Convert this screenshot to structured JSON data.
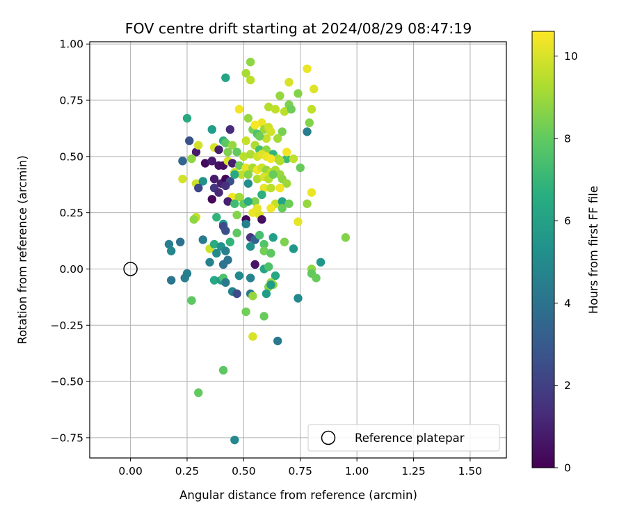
{
  "chart_data": {
    "type": "scatter",
    "title": "FOV centre drift starting at 2024/08/29 08:47:19",
    "xlabel": "Angular distance from reference (arcmin)",
    "ylabel": "Rotation from reference (arcmin)",
    "xlim": [
      -0.18,
      1.66
    ],
    "ylim": [
      -0.84,
      1.01
    ],
    "x_ticks": [
      "0.00",
      "0.25",
      "0.50",
      "0.75",
      "1.00",
      "1.25",
      "1.50"
    ],
    "y_ticks": [
      "1.00",
      "0.75",
      "0.50",
      "0.25",
      "0.00",
      "−0.25",
      "−0.50",
      "−0.75"
    ],
    "grid": true,
    "legend": {
      "placement": "lower-right",
      "entries": [
        "Reference platepar"
      ]
    },
    "colormap": "viridis",
    "colorbar": {
      "label": "Hours from first FF file",
      "range": [
        0,
        10.6
      ],
      "ticks": [
        "0",
        "2",
        "4",
        "6",
        "8",
        "10"
      ]
    },
    "reference": {
      "x": 0.0,
      "y": 0.0
    },
    "points": [
      [
        0.42,
        0.85,
        6.2
      ],
      [
        0.53,
        0.92,
        8.8
      ],
      [
        0.51,
        0.87,
        9.2
      ],
      [
        0.53,
        0.84,
        9.5
      ],
      [
        0.78,
        0.89,
        10.3
      ],
      [
        0.7,
        0.83,
        10.0
      ],
      [
        0.81,
        0.8,
        10.1
      ],
      [
        0.74,
        0.78,
        8.6
      ],
      [
        0.66,
        0.77,
        8.9
      ],
      [
        0.48,
        0.71,
        10.4
      ],
      [
        0.61,
        0.72,
        9.4
      ],
      [
        0.64,
        0.71,
        9.6
      ],
      [
        0.68,
        0.7,
        9.5
      ],
      [
        0.7,
        0.73,
        8.5
      ],
      [
        0.71,
        0.71,
        8.2
      ],
      [
        0.8,
        0.71,
        9.6
      ],
      [
        0.25,
        0.67,
        6.4
      ],
      [
        0.52,
        0.67,
        8.9
      ],
      [
        0.54,
        0.62,
        8.4
      ],
      [
        0.58,
        0.65,
        10.3
      ],
      [
        0.55,
        0.64,
        10.5
      ],
      [
        0.59,
        0.62,
        9.0
      ],
      [
        0.56,
        0.6,
        7.6
      ],
      [
        0.61,
        0.63,
        9.8
      ],
      [
        0.62,
        0.61,
        9.9
      ],
      [
        0.36,
        0.62,
        5.9
      ],
      [
        0.44,
        0.62,
        1.3
      ],
      [
        0.79,
        0.65,
        8.6
      ],
      [
        0.78,
        0.61,
        4.5
      ],
      [
        0.67,
        0.61,
        8.4
      ],
      [
        0.65,
        0.58,
        9.1
      ],
      [
        0.6,
        0.58,
        9.7
      ],
      [
        0.57,
        0.59,
        8.2
      ],
      [
        0.26,
        0.57,
        2.7
      ],
      [
        0.41,
        0.57,
        6.6
      ],
      [
        0.42,
        0.56,
        7.9
      ],
      [
        0.45,
        0.55,
        8.9
      ],
      [
        0.51,
        0.57,
        9.7
      ],
      [
        0.55,
        0.55,
        9.3
      ],
      [
        0.57,
        0.53,
        7.4
      ],
      [
        0.6,
        0.53,
        8.8
      ],
      [
        0.63,
        0.51,
        6.9
      ],
      [
        0.65,
        0.49,
        9.1
      ],
      [
        0.69,
        0.49,
        7.2
      ],
      [
        0.72,
        0.49,
        9.6
      ],
      [
        0.75,
        0.45,
        8.1
      ],
      [
        0.29,
        0.52,
        0.8
      ],
      [
        0.3,
        0.55,
        9.9
      ],
      [
        0.37,
        0.54,
        10.0
      ],
      [
        0.39,
        0.53,
        0.9
      ],
      [
        0.43,
        0.52,
        8.5
      ],
      [
        0.47,
        0.52,
        8.0
      ],
      [
        0.5,
        0.5,
        9.5
      ],
      [
        0.53,
        0.51,
        9.3
      ],
      [
        0.56,
        0.5,
        9.9
      ],
      [
        0.58,
        0.51,
        10.1
      ],
      [
        0.6,
        0.5,
        10.3
      ],
      [
        0.62,
        0.49,
        10.5
      ],
      [
        0.66,
        0.48,
        9.4
      ],
      [
        0.69,
        0.52,
        10.4
      ],
      [
        0.23,
        0.48,
        3.5
      ],
      [
        0.27,
        0.49,
        8.8
      ],
      [
        0.33,
        0.47,
        0.3
      ],
      [
        0.36,
        0.48,
        0.8
      ],
      [
        0.39,
        0.46,
        0.5
      ],
      [
        0.41,
        0.46,
        0.4
      ],
      [
        0.43,
        0.48,
        10.0
      ],
      [
        0.45,
        0.47,
        0.9
      ],
      [
        0.48,
        0.46,
        8.2
      ],
      [
        0.51,
        0.45,
        10.2
      ],
      [
        0.54,
        0.45,
        9.2
      ],
      [
        0.56,
        0.44,
        10.4
      ],
      [
        0.58,
        0.45,
        9.8
      ],
      [
        0.6,
        0.44,
        8.9
      ],
      [
        0.62,
        0.43,
        9.6
      ],
      [
        0.64,
        0.44,
        9.3
      ],
      [
        0.66,
        0.42,
        9.0
      ],
      [
        0.46,
        0.43,
        9.8
      ],
      [
        0.49,
        0.42,
        9.6
      ],
      [
        0.52,
        0.42,
        8.6
      ],
      [
        0.56,
        0.4,
        9.3
      ],
      [
        0.59,
        0.41,
        10.0
      ],
      [
        0.61,
        0.4,
        9.4
      ],
      [
        0.63,
        0.42,
        8.1
      ],
      [
        0.67,
        0.4,
        8.8
      ],
      [
        0.69,
        0.38,
        9.0
      ],
      [
        0.23,
        0.4,
        9.9
      ],
      [
        0.29,
        0.38,
        9.8
      ],
      [
        0.32,
        0.39,
        5.4
      ],
      [
        0.37,
        0.4,
        0.8
      ],
      [
        0.4,
        0.38,
        0.9
      ],
      [
        0.42,
        0.4,
        0.1
      ],
      [
        0.44,
        0.39,
        2.6
      ],
      [
        0.46,
        0.42,
        6.4
      ],
      [
        0.52,
        0.38,
        5.2
      ],
      [
        0.3,
        0.36,
        2.3
      ],
      [
        0.37,
        0.36,
        1.7
      ],
      [
        0.42,
        0.37,
        1.5
      ],
      [
        0.39,
        0.34,
        1.2
      ],
      [
        0.59,
        0.36,
        10.2
      ],
      [
        0.62,
        0.36,
        9.5
      ],
      [
        0.66,
        0.36,
        10.4
      ],
      [
        0.45,
        0.32,
        10.4
      ],
      [
        0.48,
        0.32,
        9.1
      ],
      [
        0.58,
        0.33,
        6.7
      ],
      [
        0.36,
        0.31,
        0.2
      ],
      [
        0.43,
        0.3,
        0.9
      ],
      [
        0.46,
        0.29,
        7.3
      ],
      [
        0.55,
        0.3,
        8.5
      ],
      [
        0.64,
        0.29,
        9.7
      ],
      [
        0.67,
        0.3,
        6.2
      ],
      [
        0.7,
        0.29,
        8.2
      ],
      [
        0.67,
        0.27,
        8.1
      ],
      [
        0.78,
        0.29,
        8.9
      ],
      [
        0.5,
        0.29,
        8.0
      ],
      [
        0.56,
        0.27,
        10.2
      ],
      [
        0.54,
        0.25,
        10.3
      ],
      [
        0.62,
        0.27,
        10.4
      ],
      [
        0.47,
        0.24,
        8.6
      ],
      [
        0.57,
        0.24,
        10.1
      ],
      [
        0.29,
        0.23,
        9.7
      ],
      [
        0.28,
        0.22,
        8.8
      ],
      [
        0.38,
        0.23,
        6.9
      ],
      [
        0.51,
        0.22,
        0.1
      ],
      [
        0.58,
        0.22,
        0.4
      ],
      [
        0.41,
        0.2,
        5.9
      ],
      [
        0.51,
        0.2,
        4.6
      ],
      [
        0.74,
        0.21,
        10.2
      ],
      [
        0.8,
        0.34,
        10.3
      ],
      [
        0.52,
        0.3,
        6.5
      ],
      [
        0.41,
        0.19,
        2.4
      ],
      [
        0.42,
        0.17,
        2.6
      ],
      [
        0.47,
        0.16,
        7.9
      ],
      [
        0.32,
        0.13,
        4.4
      ],
      [
        0.53,
        0.14,
        1.7
      ],
      [
        0.55,
        0.13,
        3.3
      ],
      [
        0.57,
        0.15,
        7.5
      ],
      [
        0.63,
        0.14,
        6.0
      ],
      [
        0.68,
        0.12,
        8.5
      ],
      [
        0.95,
        0.14,
        8.6
      ],
      [
        0.22,
        0.12,
        4.0
      ],
      [
        0.17,
        0.11,
        4.5
      ],
      [
        0.18,
        0.08,
        4.9
      ],
      [
        0.35,
        0.09,
        9.8
      ],
      [
        0.37,
        0.11,
        6.5
      ],
      [
        0.4,
        0.1,
        5.4
      ],
      [
        0.42,
        0.08,
        4.6
      ],
      [
        0.44,
        0.12,
        6.9
      ],
      [
        0.53,
        0.1,
        5.4
      ],
      [
        0.59,
        0.11,
        7.7
      ],
      [
        0.59,
        0.08,
        8.3
      ],
      [
        0.62,
        0.07,
        7.9
      ],
      [
        0.72,
        0.09,
        5.6
      ],
      [
        0.38,
        0.07,
        5.0
      ],
      [
        0.43,
        0.04,
        4.1
      ],
      [
        0.35,
        0.03,
        4.6
      ],
      [
        0.41,
        0.02,
        4.0
      ],
      [
        0.55,
        0.02,
        0.6
      ],
      [
        0.59,
        0.0,
        6.2
      ],
      [
        0.61,
        0.01,
        7.6
      ],
      [
        0.84,
        0.03,
        5.6
      ],
      [
        0.8,
        0.0,
        8.8
      ],
      [
        0.8,
        -0.02,
        8.0
      ],
      [
        0.82,
        -0.04,
        8.1
      ],
      [
        0.25,
        -0.02,
        4.6
      ],
      [
        0.24,
        -0.04,
        4.5
      ],
      [
        0.18,
        -0.05,
        4.1
      ],
      [
        0.37,
        -0.05,
        6.3
      ],
      [
        0.4,
        -0.05,
        5.8
      ],
      [
        0.41,
        -0.04,
        7.6
      ],
      [
        0.42,
        -0.06,
        4.3
      ],
      [
        0.48,
        -0.03,
        5.0
      ],
      [
        0.53,
        -0.04,
        4.7
      ],
      [
        0.64,
        -0.03,
        6.3
      ],
      [
        0.63,
        -0.07,
        8.9
      ],
      [
        0.62,
        -0.06,
        9.0
      ],
      [
        0.61,
        -0.08,
        8.6
      ],
      [
        0.62,
        -0.07,
        5.8
      ],
      [
        0.45,
        -0.1,
        4.6
      ],
      [
        0.47,
        -0.11,
        2.4
      ],
      [
        0.53,
        -0.11,
        4.1
      ],
      [
        0.54,
        -0.12,
        8.9
      ],
      [
        0.6,
        -0.11,
        5.8
      ],
      [
        0.74,
        -0.13,
        5.0
      ],
      [
        0.27,
        -0.14,
        7.9
      ],
      [
        0.51,
        -0.19,
        8.3
      ],
      [
        0.59,
        -0.21,
        8.1
      ],
      [
        0.65,
        -0.32,
        4.3
      ],
      [
        0.54,
        -0.3,
        10.0
      ],
      [
        0.41,
        -0.45,
        7.9
      ],
      [
        0.3,
        -0.55,
        8.0
      ],
      [
        0.46,
        -0.76,
        5.0
      ]
    ]
  }
}
